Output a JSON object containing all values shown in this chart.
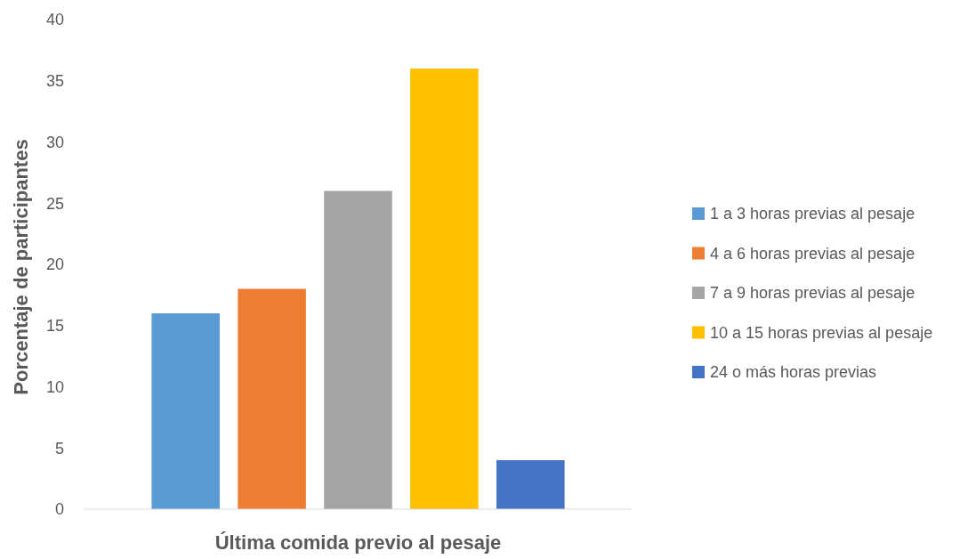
{
  "chart_data": {
    "type": "bar",
    "xlabel": "Última comida previo al pesaje",
    "ylabel": "Porcentaje de participantes",
    "categories": [
      null
    ],
    "series": [
      {
        "name": "1 a 3 horas previas al pesaje",
        "color": "#5b9bd5",
        "values": [
          16
        ]
      },
      {
        "name": "4 a 6 horas previas al pesaje",
        "color": "#ed7d31",
        "values": [
          18
        ]
      },
      {
        "name": "7 a 9 horas previas al pesaje",
        "color": "#a5a5a5",
        "values": [
          26
        ]
      },
      {
        "name": "10 a 15 horas previas al pesaje",
        "color": "#ffc000",
        "values": [
          36
        ]
      },
      {
        "name": "24 o más horas previas",
        "color": "#4472c4",
        "values": [
          4
        ]
      }
    ],
    "ylim": [
      0,
      40
    ],
    "yticks": [
      0,
      5,
      10,
      15,
      20,
      25,
      30,
      35,
      40
    ],
    "grid": false,
    "legend": "right"
  }
}
